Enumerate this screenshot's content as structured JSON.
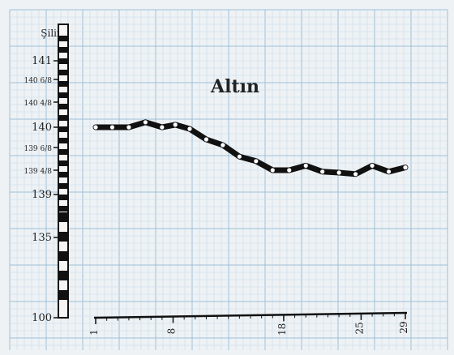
{
  "chart_data": {
    "type": "line",
    "title": "Altın",
    "ylabel": "Şilin",
    "y_axis": {
      "ticks": [
        {
          "label": "141",
          "value": 141
        },
        {
          "label": "140 6/8",
          "value": 140.75
        },
        {
          "label": "140 4/8",
          "value": 140.5
        },
        {
          "label": "140",
          "value": 140
        },
        {
          "label": "139 6/8",
          "value": 139.75
        },
        {
          "label": "139 4/8",
          "value": 139.5
        },
        {
          "label": "139",
          "value": 139
        },
        {
          "label": "135",
          "value": 135
        },
        {
          "label": "100",
          "value": 100
        }
      ]
    },
    "x_axis": {
      "ticks": [
        {
          "label": "1",
          "value": 1
        },
        {
          "label": "8",
          "value": 8
        },
        {
          "label": "18",
          "value": 18
        },
        {
          "label": "25",
          "value": 25
        },
        {
          "label": "29",
          "value": 29
        }
      ],
      "xlim": [
        1,
        29
      ]
    },
    "grid": true,
    "series": [
      {
        "x": [
          1,
          2.5,
          4,
          5.5,
          7,
          8.2,
          9.5,
          11,
          12.5,
          14,
          15.5,
          17,
          18.5,
          20,
          21.5,
          23,
          24.5,
          26,
          27.5,
          29
        ],
        "y": [
          140,
          140,
          140,
          140.1,
          140,
          140.05,
          139.98,
          139.85,
          139.78,
          139.65,
          139.6,
          139.5,
          139.5,
          139.55,
          139.47,
          139.45,
          139.42,
          139.55,
          139.47,
          139.53
        ]
      }
    ]
  }
}
